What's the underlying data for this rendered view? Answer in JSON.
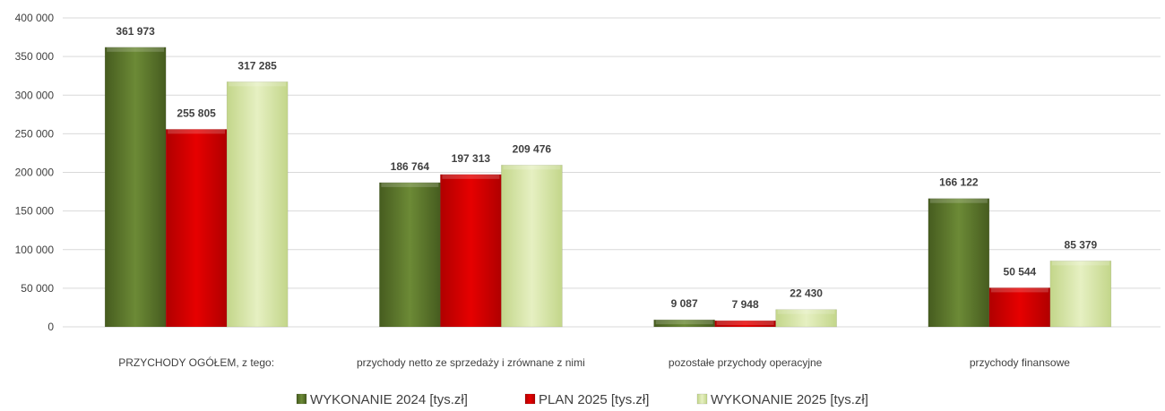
{
  "chart_data": {
    "type": "bar",
    "categories": [
      "PRZYCHODY OGÓŁEM, z tego:",
      "przychody netto ze sprzedaży i zrównane z nimi",
      "pozostałe przychody operacyjne",
      "przychody finansowe"
    ],
    "series": [
      {
        "name": "WYKONANIE 2024 [tys.zł]",
        "values": [
          361973,
          186764,
          9087,
          166122
        ],
        "labels": [
          "361 973",
          "186 764",
          "9 087",
          "166 122"
        ],
        "color": "#5f7a2e"
      },
      {
        "name": "PLAN 2025 [tys.zł]",
        "values": [
          255805,
          197313,
          7948,
          50544
        ],
        "labels": [
          "255 805",
          "197 313",
          "7 948",
          "50 544"
        ],
        "color": "#d90000"
      },
      {
        "name": "WYKONANIE 2025 [tys.zł]",
        "values": [
          317285,
          209476,
          22430,
          85379
        ],
        "labels": [
          "317 285",
          "209 476",
          "22 430",
          "85 379"
        ],
        "color": "#d6e6a8"
      }
    ],
    "yticks": [
      0,
      50000,
      100000,
      150000,
      200000,
      250000,
      300000,
      350000,
      400000
    ],
    "ytick_labels": [
      "0",
      "50 000",
      "100 000",
      "150 000",
      "200 000",
      "250 000",
      "300 000",
      "350 000",
      "400 000"
    ],
    "ylim": [
      0,
      400000
    ],
    "grid": true,
    "legend_position": "bottom"
  }
}
